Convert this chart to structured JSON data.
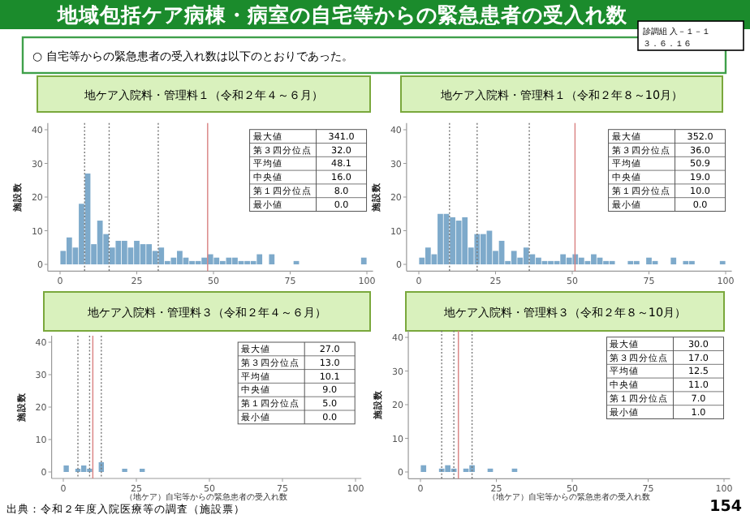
{
  "chart_data": [
    {
      "type": "other",
      "title": "地域包括ケア病棟・病室の自宅等からの緊急患者の受入れ数",
      "subtitle": "○ 自宅等からの緊急患者の受入れ数は以下のとおりであった。",
      "annotations": [
        "診調組 入－１－１",
        "３．６．１６",
        "出典：令和２年度入院医療等の調査（施設票）",
        "154"
      ]
    },
    {
      "type": "histogram",
      "title": "地ケア入院料・管理料１（令和２年４～６月）",
      "ylabel": "施設数",
      "color": "#7eaacb",
      "bins": [
        0,
        2,
        4,
        6,
        8,
        10,
        12,
        14,
        16,
        18,
        20,
        22,
        24,
        26,
        28,
        30,
        32,
        34,
        36,
        38,
        40,
        42,
        44,
        46,
        48,
        50,
        52,
        54,
        56,
        58,
        60,
        62,
        64,
        66,
        68,
        70,
        72,
        74,
        76,
        78,
        80,
        82,
        84,
        86,
        88,
        90,
        92,
        94,
        96,
        98,
        100
      ],
      "values": [
        4,
        8,
        5,
        18,
        27,
        6,
        13,
        9,
        5,
        7,
        7,
        5,
        7,
        6,
        6,
        4,
        5,
        1,
        2,
        4,
        2,
        1,
        1,
        2,
        3,
        2,
        1,
        2,
        2,
        1,
        1,
        1,
        3,
        0,
        3,
        0,
        0,
        0,
        1,
        0,
        0,
        0,
        0,
        0,
        0,
        0,
        0,
        0,
        0,
        2
      ],
      "xlim": [
        -4,
        102
      ],
      "ylim": [
        -2,
        42
      ],
      "xticks": [
        0,
        25,
        50,
        75,
        100
      ],
      "yticks": [
        0,
        10,
        20,
        30,
        40
      ],
      "ref_lines": [
        {
          "axis": "x",
          "value": 8,
          "color": "#777777",
          "line_style": "dotted"
        },
        {
          "axis": "x",
          "value": 16,
          "color": "#777777",
          "line_style": "dotted"
        },
        {
          "axis": "x",
          "value": 32,
          "color": "#777777",
          "line_style": "dotted"
        },
        {
          "axis": "x",
          "value": 48.1,
          "color": "#d98080",
          "line_style": "solid"
        }
      ],
      "annotations": [
        "最大値",
        "341.0",
        "第３四分位点",
        "32.0",
        "平均値",
        "48.1",
        "中央値",
        "16.0",
        "第１四分位点",
        "8.0",
        "最小値",
        "0.0"
      ]
    },
    {
      "type": "histogram",
      "title": "地ケア入院料・管理料１（令和２年８～10月）",
      "ylabel": "施設数",
      "color": "#7eaacb",
      "bins": [
        0,
        2,
        4,
        6,
        8,
        10,
        12,
        14,
        16,
        18,
        20,
        22,
        24,
        26,
        28,
        30,
        32,
        34,
        36,
        38,
        40,
        42,
        44,
        46,
        48,
        50,
        52,
        54,
        56,
        58,
        60,
        62,
        64,
        66,
        68,
        70,
        72,
        74,
        76,
        78,
        80,
        82,
        84,
        86,
        88,
        90,
        92,
        94,
        96,
        98,
        100
      ],
      "values": [
        2,
        5,
        3,
        15,
        15,
        14,
        13,
        14,
        5,
        9,
        9,
        10,
        4,
        7,
        1,
        4,
        2,
        5,
        3,
        2,
        1,
        1,
        1,
        3,
        2,
        3,
        2,
        1,
        3,
        2,
        1,
        1,
        0,
        0,
        1,
        1,
        0,
        2,
        1,
        0,
        0,
        2,
        0,
        1,
        1,
        0,
        0,
        0,
        0,
        1
      ],
      "xlim": [
        -4,
        102
      ],
      "ylim": [
        -2,
        42
      ],
      "xticks": [
        0,
        25,
        50,
        75,
        100
      ],
      "yticks": [
        0,
        10,
        20,
        30,
        40
      ],
      "ref_lines": [
        {
          "axis": "x",
          "value": 10,
          "color": "#777777",
          "line_style": "dotted"
        },
        {
          "axis": "x",
          "value": 19,
          "color": "#777777",
          "line_style": "dotted"
        },
        {
          "axis": "x",
          "value": 36,
          "color": "#777777",
          "line_style": "dotted"
        },
        {
          "axis": "x",
          "value": 50.9,
          "color": "#d98080",
          "line_style": "solid"
        }
      ],
      "annotations": [
        "最大値",
        "352.0",
        "第３四分位点",
        "36.0",
        "平均値",
        "50.9",
        "中央値",
        "19.0",
        "第１四分位点",
        "10.0",
        "最小値",
        "0.0"
      ]
    },
    {
      "type": "histogram",
      "title": "地ケア入院料・管理料３（令和２年４～６月）",
      "ylabel": "施設数",
      "xlabel": "（地ケア）自宅等からの緊急患者の受入れ数",
      "color": "#7eaacb",
      "bins": [
        0,
        2,
        4,
        6,
        8,
        10,
        12,
        14,
        16,
        18,
        20,
        22,
        24,
        26,
        28,
        30
      ],
      "values": [
        2,
        0,
        1,
        2,
        1,
        0,
        3,
        0,
        0,
        0,
        1,
        0,
        0,
        1,
        0
      ],
      "xlim": [
        -4,
        102
      ],
      "ylim": [
        -2,
        42
      ],
      "xticks": [
        0,
        25,
        50,
        75,
        100
      ],
      "yticks": [
        0,
        10,
        20,
        30,
        40
      ],
      "ref_lines": [
        {
          "axis": "x",
          "value": 5,
          "color": "#777777",
          "line_style": "dotted"
        },
        {
          "axis": "x",
          "value": 9,
          "color": "#777777",
          "line_style": "dotted"
        },
        {
          "axis": "x",
          "value": 13,
          "color": "#777777",
          "line_style": "dotted"
        },
        {
          "axis": "x",
          "value": 10.1,
          "color": "#d98080",
          "line_style": "solid"
        }
      ],
      "annotations": [
        "最大値",
        "27.0",
        "第３四分位点",
        "13.0",
        "平均値",
        "10.1",
        "中央値",
        "9.0",
        "第１四分位点",
        "5.0",
        "最小値",
        "0.0"
      ]
    },
    {
      "type": "histogram",
      "title": "地ケア入院料・管理料３（令和２年８～10月）",
      "ylabel": "施設数",
      "xlabel": "（地ケア）自宅等からの緊急患者の受入れ数",
      "color": "#7eaacb",
      "bins": [
        0,
        2,
        4,
        6,
        8,
        10,
        12,
        14,
        16,
        18,
        20,
        22,
        24,
        26,
        28,
        30,
        32
      ],
      "values": [
        2,
        0,
        0,
        1,
        2,
        1,
        0,
        1,
        2,
        0,
        0,
        1,
        0,
        0,
        0,
        1
      ],
      "xlim": [
        -4,
        102
      ],
      "ylim": [
        -2,
        42
      ],
      "xticks": [
        0,
        25,
        50,
        75,
        100
      ],
      "yticks": [
        0,
        10,
        20,
        30,
        40
      ],
      "ref_lines": [
        {
          "axis": "x",
          "value": 7,
          "color": "#777777",
          "line_style": "dotted"
        },
        {
          "axis": "x",
          "value": 11,
          "color": "#777777",
          "line_style": "dotted"
        },
        {
          "axis": "x",
          "value": 17,
          "color": "#777777",
          "line_style": "dotted"
        },
        {
          "axis": "x",
          "value": 12.5,
          "color": "#d98080",
          "line_style": "solid"
        }
      ],
      "annotations": [
        "最大値",
        "30.0",
        "第３四分位点",
        "17.0",
        "平均値",
        "12.5",
        "中央値",
        "11.0",
        "第１四分位点",
        "7.0",
        "最小値",
        "1.0"
      ]
    }
  ]
}
